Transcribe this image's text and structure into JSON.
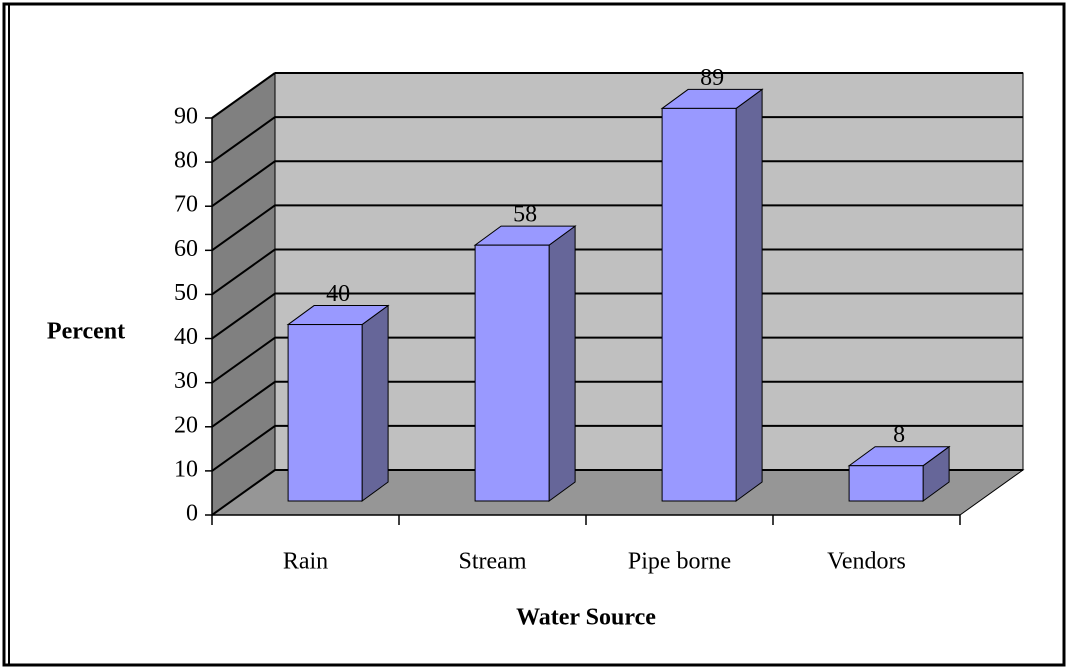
{
  "chart_data": {
    "type": "bar3d",
    "categories": [
      "Rain",
      "Stream",
      "Pipe borne",
      "Vendors"
    ],
    "values": [
      40,
      58,
      89,
      8
    ],
    "color": "#9999ff",
    "x_label": "Water Source",
    "y_label": "Percent",
    "ylim": [
      0,
      90
    ],
    "yticks": [
      0,
      10,
      20,
      30,
      40,
      50,
      60,
      70,
      80,
      90
    ],
    "grid": true
  }
}
